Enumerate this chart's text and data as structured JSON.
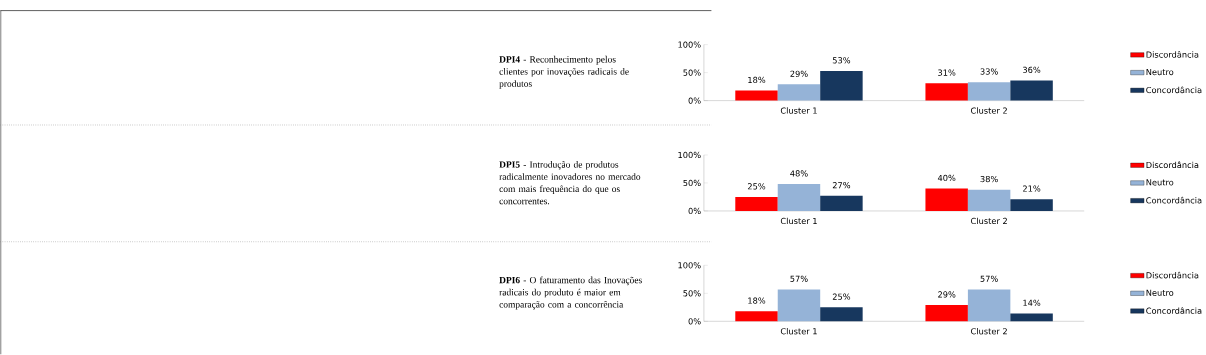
{
  "chart_data": [
    {
      "type": "bar",
      "title": "**DPI4** - Reconhecimento pelos clientes por inovações radicais de produtos",
      "categories": [
        "Cluster 1",
        "Cluster 2"
      ],
      "series": [
        {
          "name": "Discordância",
          "color": "#ff0000",
          "values": [
            18,
            31
          ],
          "value_labels": [
            "18%",
            "31%"
          ]
        },
        {
          "name": "Neutro",
          "color": "#95b3d7",
          "values": [
            29,
            33
          ],
          "value_labels": [
            "29%",
            "33%"
          ]
        },
        {
          "name": "Concordância",
          "color": "#17375e",
          "values": [
            53,
            36
          ],
          "value_labels": [
            "53%",
            "36%"
          ]
        }
      ],
      "ylim": [
        0,
        100
      ],
      "yticks": [
        {
          "value": 0,
          "label": "0%"
        },
        {
          "value": 50,
          "label": "50%"
        },
        {
          "value": 100,
          "label": "100%"
        }
      ],
      "legend": "right"
    },
    {
      "type": "bar",
      "title": "**DPI5** - Introdução de produtos radicalmente inovadores no mercado com mais frequência do que os concorrentes.",
      "categories": [
        "Cluster 1",
        "Cluster 2"
      ],
      "series": [
        {
          "name": "Discordância",
          "color": "#ff0000",
          "values": [
            25,
            40
          ],
          "value_labels": [
            "25%",
            "40%"
          ]
        },
        {
          "name": "Neutro",
          "color": "#95b3d7",
          "values": [
            48,
            38
          ],
          "value_labels": [
            "48%",
            "38%"
          ]
        },
        {
          "name": "Concordância",
          "color": "#17375e",
          "values": [
            27,
            21
          ],
          "value_labels": [
            "27%",
            "21%"
          ]
        }
      ],
      "ylim": [
        0,
        100
      ],
      "yticks": [
        {
          "value": 0,
          "label": "0%"
        },
        {
          "value": 50,
          "label": "50%"
        },
        {
          "value": 100,
          "label": "100%"
        }
      ],
      "legend": "right"
    },
    {
      "type": "bar",
      "title": "**DPI6** - O faturamento das Inovações radicais do produto é maior em comparação com a concorrência",
      "categories": [
        "Cluster 1",
        "Cluster 2"
      ],
      "series": [
        {
          "name": "Discordância",
          "color": "#ff0000",
          "values": [
            18,
            29
          ],
          "value_labels": [
            "18%",
            "29%"
          ]
        },
        {
          "name": "Neutro",
          "color": "#95b3d7",
          "values": [
            57,
            57
          ],
          "value_labels": [
            "57%",
            "57%"
          ]
        },
        {
          "name": "Concordância",
          "color": "#17375e",
          "values": [
            25,
            14
          ],
          "value_labels": [
            "25%",
            "14%"
          ]
        }
      ],
      "ylim": [
        0,
        100
      ],
      "yticks": [
        {
          "value": 0,
          "label": "0%"
        },
        {
          "value": 50,
          "label": "50%"
        },
        {
          "value": 100,
          "label": "100%"
        }
      ],
      "legend": "right"
    }
  ]
}
